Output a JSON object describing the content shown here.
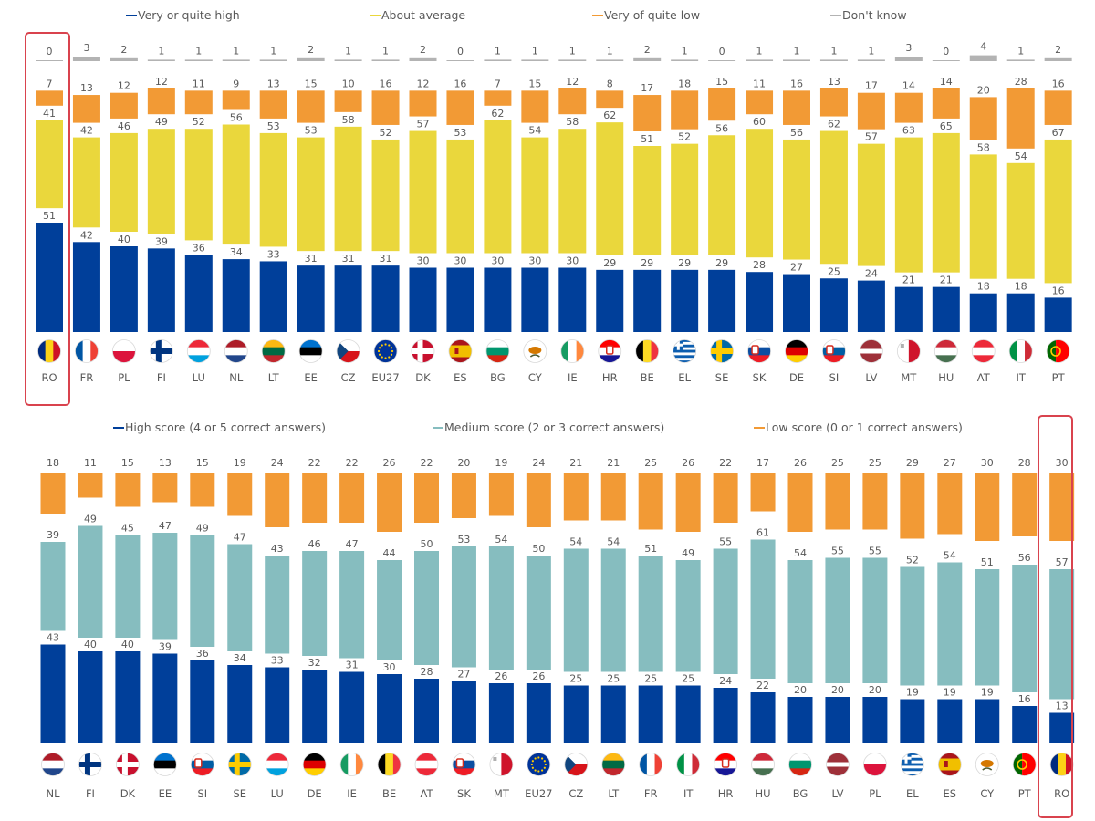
{
  "chart_data": [
    {
      "type": "bar",
      "stacked": true,
      "legend_position": "top",
      "grid": false,
      "highlighted_category": "RO",
      "categories": [
        "RO",
        "FR",
        "PL",
        "FI",
        "LU",
        "NL",
        "LT",
        "EE",
        "CZ",
        "EU27",
        "DK",
        "ES",
        "BG",
        "CY",
        "IE",
        "HR",
        "BE",
        "EL",
        "SE",
        "SK",
        "DE",
        "SI",
        "LV",
        "MT",
        "HU",
        "AT",
        "IT",
        "PT"
      ],
      "series": [
        {
          "name": "Very or quite high",
          "color": "#003f9a",
          "values": [
            51,
            42,
            40,
            39,
            36,
            34,
            33,
            31,
            31,
            31,
            30,
            30,
            30,
            30,
            30,
            29,
            29,
            29,
            29,
            28,
            27,
            25,
            24,
            21,
            21,
            18,
            18,
            16
          ]
        },
        {
          "name": "About average",
          "color": "#ead73c",
          "values": [
            41,
            42,
            46,
            49,
            52,
            56,
            53,
            53,
            58,
            52,
            57,
            53,
            62,
            54,
            58,
            62,
            51,
            52,
            56,
            60,
            56,
            62,
            57,
            63,
            65,
            58,
            54,
            67
          ]
        },
        {
          "name": "Very of quite low",
          "color": "#f29a35",
          "values": [
            7,
            13,
            12,
            12,
            11,
            9,
            13,
            15,
            10,
            16,
            12,
            16,
            7,
            15,
            12,
            8,
            17,
            18,
            15,
            11,
            16,
            13,
            17,
            14,
            14,
            20,
            28,
            16
          ]
        },
        {
          "name": "Don't know",
          "color": "#b3b3b3",
          "values": [
            0,
            3,
            2,
            1,
            1,
            1,
            1,
            2,
            1,
            1,
            2,
            0,
            1,
            1,
            1,
            1,
            2,
            1,
            0,
            1,
            1,
            1,
            1,
            3,
            0,
            4,
            1,
            2
          ]
        }
      ]
    },
    {
      "type": "bar",
      "stacked": true,
      "legend_position": "top",
      "grid": false,
      "highlighted_category": "RO",
      "categories": [
        "NL",
        "FI",
        "DK",
        "EE",
        "SI",
        "SE",
        "LU",
        "DE",
        "IE",
        "BE",
        "AT",
        "SK",
        "MT",
        "EU27",
        "CZ",
        "LT",
        "FR",
        "IT",
        "HR",
        "HU",
        "BG",
        "LV",
        "PL",
        "EL",
        "ES",
        "CY",
        "PT",
        "RO"
      ],
      "series": [
        {
          "name": "High score (4 or 5 correct answers)",
          "color": "#003f9a",
          "values": [
            43,
            40,
            40,
            39,
            36,
            34,
            33,
            32,
            31,
            30,
            28,
            27,
            26,
            26,
            25,
            25,
            25,
            25,
            24,
            22,
            20,
            20,
            20,
            19,
            19,
            19,
            16,
            13
          ]
        },
        {
          "name": "Medium score (2 or 3 correct answers)",
          "color": "#86bdbf",
          "values": [
            39,
            49,
            45,
            47,
            49,
            47,
            43,
            46,
            47,
            44,
            50,
            53,
            54,
            50,
            54,
            54,
            51,
            49,
            55,
            61,
            54,
            55,
            55,
            52,
            54,
            51,
            56,
            57
          ]
        },
        {
          "name": "Low score (0 or 1 correct answers)",
          "color": "#f29a35",
          "values": [
            18,
            11,
            15,
            13,
            15,
            19,
            24,
            22,
            22,
            26,
            22,
            20,
            19,
            24,
            21,
            21,
            25,
            26,
            22,
            17,
            26,
            25,
            25,
            29,
            27,
            30,
            28,
            30
          ]
        }
      ]
    }
  ],
  "flag_colors": {
    "RO": [
      "#002b7f",
      "#fcd116",
      "#ce1126"
    ],
    "FR": [
      "#0055a4",
      "#ffffff",
      "#ef4135"
    ],
    "PL": [
      "#ffffff",
      "#dc143c"
    ],
    "FI": [
      "#ffffff",
      "#003580"
    ],
    "LU": [
      "#ed2939",
      "#ffffff",
      "#00a1de"
    ],
    "NL": [
      "#ae1c28",
      "#ffffff",
      "#21468b"
    ],
    "LT": [
      "#fdb913",
      "#006a44",
      "#c1272d"
    ],
    "EE": [
      "#0072ce",
      "#000000",
      "#ffffff"
    ],
    "CZ": [
      "#ffffff",
      "#d7141a",
      "#11457e"
    ],
    "EU27": [
      "#003399",
      "#ffcc00"
    ],
    "DK": [
      "#c8102e",
      "#ffffff"
    ],
    "ES": [
      "#aa151b",
      "#f1bf00",
      "#aa151b"
    ],
    "BG": [
      "#ffffff",
      "#00966e",
      "#d62612"
    ],
    "CY": [
      "#ffffff",
      "#d57800",
      "#4e5b31"
    ],
    "IE": [
      "#169b62",
      "#ffffff",
      "#ff883e"
    ],
    "HR": [
      "#ff0000",
      "#ffffff",
      "#171796"
    ],
    "BE": [
      "#000000",
      "#fdda24",
      "#ef3340"
    ],
    "EL": [
      "#0d5eaf",
      "#ffffff"
    ],
    "SE": [
      "#006aa7",
      "#fecc00"
    ],
    "SK": [
      "#ffffff",
      "#0b4ea2",
      "#ee1c25"
    ],
    "DE": [
      "#000000",
      "#dd0000",
      "#ffce00"
    ],
    "SI": [
      "#ffffff",
      "#005da4",
      "#ed1c24"
    ],
    "LV": [
      "#9e3039",
      "#ffffff"
    ],
    "MT": [
      "#ffffff",
      "#cf142b"
    ],
    "HU": [
      "#ce2939",
      "#ffffff",
      "#477050"
    ],
    "AT": [
      "#ed2939",
      "#ffffff",
      "#ed2939"
    ],
    "IT": [
      "#009246",
      "#ffffff",
      "#ce2b37"
    ],
    "PT": [
      "#006600",
      "#ff0000",
      "#ffcc00"
    ]
  },
  "highlight_color": "#d9434e"
}
